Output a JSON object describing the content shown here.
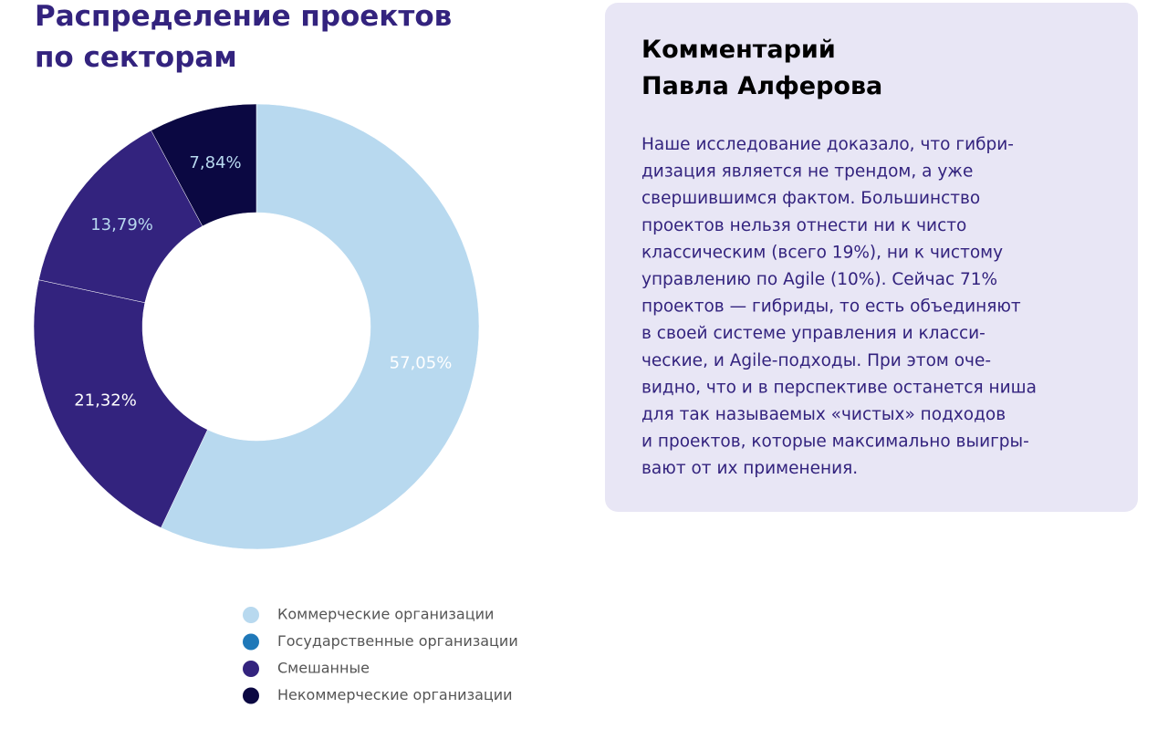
{
  "chart_data": {
    "type": "donut",
    "title_lines": [
      "Распределение проектов",
      "по секторам"
    ],
    "values": [
      57.05,
      21.32,
      13.79,
      7.84
    ],
    "value_labels": [
      "57,05%",
      "21,32%",
      "13,79%",
      "7,84%"
    ],
    "colors": [
      "#b8d9ef",
      "#33237e",
      "#33237e",
      "#0b0842"
    ],
    "label_colors": [
      "#ffffff",
      "#ffffff",
      "#b8d9ef",
      "#b8d9ef"
    ],
    "legend": [
      {
        "name": "Коммерческие организации",
        "color": "#b8d9ef"
      },
      {
        "name": "Государственные организации",
        "color": "#1f78b8"
      },
      {
        "name": "Смешанные",
        "color": "#33237e"
      },
      {
        "name": "Некоммерческие организации",
        "color": "#0b0842"
      }
    ]
  },
  "comment": {
    "title_lines": [
      "Комментарий",
      "Павла Алферова"
    ],
    "body_lines": [
      "Наше исследование доказало, что гибри-",
      "дизация является не трендом, а уже",
      "свершившимся фактом. Большинство",
      "проектов нельзя отнести ни к чисто",
      "классическим (всего 19%), ни к чистому",
      "управлению по Agile (10%). Сейчас 71%",
      "проектов — гибриды, то есть объединяют",
      "в своей системе управления и класси-",
      "ческие, и Agile-подходы. При этом оче-",
      "видно, что и в перспективе останется ниша",
      "для так называемых «чистых» подходов",
      "и проектов, которые максимально выигры-",
      "вают от их применения."
    ]
  }
}
